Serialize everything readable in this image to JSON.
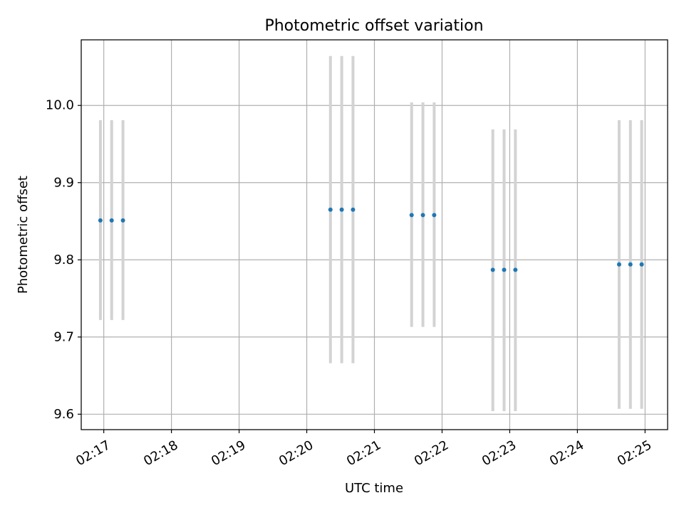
{
  "chart_data": {
    "type": "scatter",
    "title": "Photometric offset variation",
    "xlabel": "UTC time",
    "ylabel": "Photometric offset",
    "grid": true,
    "xlim": [
      "02:16:40",
      "02:25:20"
    ],
    "ylim": [
      9.58,
      10.085
    ],
    "x_ticks": [
      "02:17",
      "02:18",
      "02:19",
      "02:20",
      "02:21",
      "02:22",
      "02:23",
      "02:24",
      "02:25"
    ],
    "y_ticks": [
      "9.6",
      "9.7",
      "9.8",
      "9.9",
      "10.0"
    ],
    "x_tick_rotation_deg": 30,
    "colors": {
      "points": "#1f77b4",
      "error_bars": "#d3d3d3",
      "grid": "#b0b0b0",
      "axes": "#000000"
    },
    "series": [
      {
        "marker": "point",
        "points": [
          {
            "x": "02:16:57",
            "y": 9.851,
            "y_low": 9.722,
            "y_high": 9.981
          },
          {
            "x": "02:17:07",
            "y": 9.851,
            "y_low": 9.722,
            "y_high": 9.981
          },
          {
            "x": "02:17:17",
            "y": 9.851,
            "y_low": 9.722,
            "y_high": 9.981
          },
          {
            "x": "02:20:21",
            "y": 9.865,
            "y_low": 9.666,
            "y_high": 10.064
          },
          {
            "x": "02:20:31",
            "y": 9.865,
            "y_low": 9.666,
            "y_high": 10.064
          },
          {
            "x": "02:20:41",
            "y": 9.865,
            "y_low": 9.666,
            "y_high": 10.064
          },
          {
            "x": "02:21:33",
            "y": 9.858,
            "y_low": 9.713,
            "y_high": 10.004
          },
          {
            "x": "02:21:43",
            "y": 9.858,
            "y_low": 9.713,
            "y_high": 10.004
          },
          {
            "x": "02:21:53",
            "y": 9.858,
            "y_low": 9.713,
            "y_high": 10.004
          },
          {
            "x": "02:22:45",
            "y": 9.787,
            "y_low": 9.604,
            "y_high": 9.969
          },
          {
            "x": "02:22:55",
            "y": 9.787,
            "y_low": 9.604,
            "y_high": 9.969
          },
          {
            "x": "02:23:05",
            "y": 9.787,
            "y_low": 9.604,
            "y_high": 9.969
          },
          {
            "x": "02:24:37",
            "y": 9.794,
            "y_low": 9.607,
            "y_high": 9.981
          },
          {
            "x": "02:24:47",
            "y": 9.794,
            "y_low": 9.607,
            "y_high": 9.981
          },
          {
            "x": "02:24:57",
            "y": 9.794,
            "y_low": 9.607,
            "y_high": 9.981
          }
        ]
      }
    ]
  }
}
